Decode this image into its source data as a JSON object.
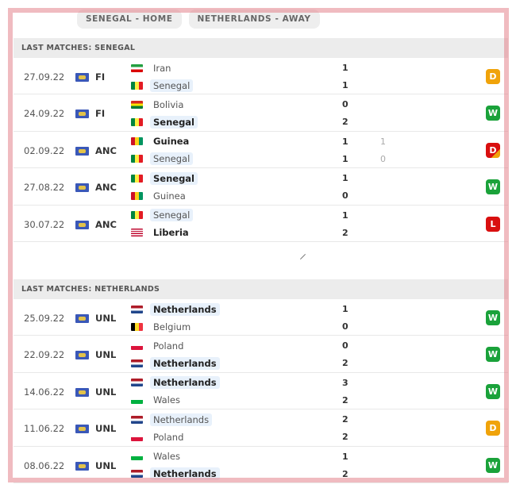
{
  "tabs": [
    "SENEGAL - HOME",
    "NETHERLANDS - AWAY"
  ],
  "colors": {
    "W": "#1aa23a",
    "D": "#f0a30a",
    "L": "#d90f0f",
    "Dp": "linear-gradient(135deg,#d90f0f 70%,#f0a30a 70%)"
  },
  "sections": [
    {
      "title": "LAST MATCHES: SENEGAL",
      "matches": [
        {
          "date": "27.09.22",
          "league": "FI",
          "home": {
            "name": "Iran",
            "flag": "iran",
            "hl": false,
            "bold": false
          },
          "away": {
            "name": "Senegal",
            "flag": "senegal",
            "hl": true,
            "bold": false
          },
          "score": [
            "1",
            "1"
          ],
          "extra": [
            "",
            ""
          ],
          "result": "D",
          "result_style": "D"
        },
        {
          "date": "24.09.22",
          "league": "FI",
          "home": {
            "name": "Bolivia",
            "flag": "bolivia",
            "hl": false,
            "bold": false
          },
          "away": {
            "name": "Senegal",
            "flag": "senegal",
            "hl": true,
            "bold": true
          },
          "score": [
            "0",
            "2"
          ],
          "extra": [
            "",
            ""
          ],
          "result": "W",
          "result_style": "W"
        },
        {
          "date": "02.09.22",
          "league": "ANC",
          "home": {
            "name": "Guinea",
            "flag": "guinea",
            "hl": false,
            "bold": true
          },
          "away": {
            "name": "Senegal",
            "flag": "senegal",
            "hl": true,
            "bold": false
          },
          "score": [
            "1",
            "1"
          ],
          "extra": [
            "1",
            "0"
          ],
          "result": "D",
          "result_style": "Dp"
        },
        {
          "date": "27.08.22",
          "league": "ANC",
          "home": {
            "name": "Senegal",
            "flag": "senegal",
            "hl": true,
            "bold": true
          },
          "away": {
            "name": "Guinea",
            "flag": "guinea",
            "hl": false,
            "bold": false
          },
          "score": [
            "1",
            "0"
          ],
          "extra": [
            "",
            ""
          ],
          "result": "W",
          "result_style": "W"
        },
        {
          "date": "30.07.22",
          "league": "ANC",
          "home": {
            "name": "Senegal",
            "flag": "senegal",
            "hl": true,
            "bold": false
          },
          "away": {
            "name": "Liberia",
            "flag": "liberia",
            "hl": false,
            "bold": true
          },
          "score": [
            "1",
            "2"
          ],
          "extra": [
            "",
            ""
          ],
          "result": "L",
          "result_style": "L"
        }
      ]
    },
    {
      "title": "LAST MATCHES: NETHERLANDS",
      "matches": [
        {
          "date": "25.09.22",
          "league": "UNL",
          "home": {
            "name": "Netherlands",
            "flag": "netherlands",
            "hl": true,
            "bold": true
          },
          "away": {
            "name": "Belgium",
            "flag": "belgium",
            "hl": false,
            "bold": false
          },
          "score": [
            "1",
            "0"
          ],
          "extra": [
            "",
            ""
          ],
          "result": "W",
          "result_style": "W"
        },
        {
          "date": "22.09.22",
          "league": "UNL",
          "home": {
            "name": "Poland",
            "flag": "poland",
            "hl": false,
            "bold": false
          },
          "away": {
            "name": "Netherlands",
            "flag": "netherlands",
            "hl": true,
            "bold": true
          },
          "score": [
            "0",
            "2"
          ],
          "extra": [
            "",
            ""
          ],
          "result": "W",
          "result_style": "W"
        },
        {
          "date": "14.06.22",
          "league": "UNL",
          "home": {
            "name": "Netherlands",
            "flag": "netherlands",
            "hl": true,
            "bold": true
          },
          "away": {
            "name": "Wales",
            "flag": "wales",
            "hl": false,
            "bold": false
          },
          "score": [
            "3",
            "2"
          ],
          "extra": [
            "",
            ""
          ],
          "result": "W",
          "result_style": "W"
        },
        {
          "date": "11.06.22",
          "league": "UNL",
          "home": {
            "name": "Netherlands",
            "flag": "netherlands",
            "hl": true,
            "bold": false
          },
          "away": {
            "name": "Poland",
            "flag": "poland",
            "hl": false,
            "bold": false
          },
          "score": [
            "2",
            "2"
          ],
          "extra": [
            "",
            ""
          ],
          "result": "D",
          "result_style": "D"
        },
        {
          "date": "08.06.22",
          "league": "UNL",
          "home": {
            "name": "Wales",
            "flag": "wales",
            "hl": false,
            "bold": false
          },
          "away": {
            "name": "Netherlands",
            "flag": "netherlands",
            "hl": true,
            "bold": true
          },
          "score": [
            "1",
            "2"
          ],
          "extra": [
            "",
            ""
          ],
          "result": "W",
          "result_style": "W"
        }
      ]
    }
  ]
}
